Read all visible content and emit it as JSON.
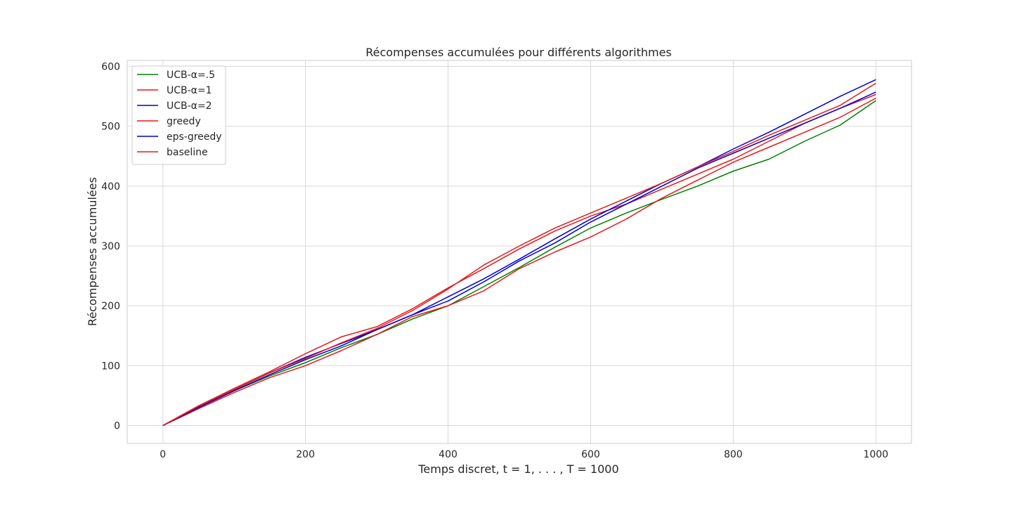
{
  "chart_data": {
    "type": "line",
    "title": "Récompenses accumulées pour différents algorithmes",
    "xlabel": "Temps discret, t = 1, . . . , T = 1000",
    "ylabel": "Récompenses accumulées",
    "xlim": [
      -50,
      1050
    ],
    "ylim": [
      -30,
      610
    ],
    "xticks": [
      0,
      200,
      400,
      600,
      800,
      1000
    ],
    "yticks": [
      0,
      100,
      200,
      300,
      400,
      500,
      600
    ],
    "grid": true,
    "legend_position": "top-left",
    "x": [
      0,
      50,
      100,
      150,
      200,
      250,
      300,
      350,
      400,
      450,
      500,
      550,
      600,
      650,
      700,
      750,
      800,
      850,
      900,
      950,
      1000
    ],
    "series": [
      {
        "name": "UCB-α=.5",
        "color": "#008000",
        "values": [
          0,
          30,
          58,
          83,
          105,
          130,
          152,
          178,
          200,
          232,
          264,
          298,
          330,
          355,
          378,
          400,
          425,
          445,
          475,
          502,
          543
        ]
      },
      {
        "name": "UCB-α=1",
        "color": "#e41a1c",
        "values": [
          0,
          33,
          62,
          90,
          120,
          148,
          165,
          195,
          230,
          262,
          295,
          325,
          350,
          370,
          395,
          420,
          445,
          475,
          505,
          530,
          553
        ]
      },
      {
        "name": "UCB-α=2",
        "color": "#0000cc",
        "values": [
          0,
          31,
          60,
          88,
          114,
          137,
          160,
          185,
          215,
          245,
          278,
          312,
          345,
          375,
          405,
          432,
          462,
          490,
          520,
          550,
          578
        ]
      },
      {
        "name": "greedy",
        "color": "#e41a1c",
        "values": [
          0,
          28,
          55,
          80,
          100,
          125,
          152,
          182,
          200,
          225,
          262,
          290,
          315,
          345,
          380,
          410,
          440,
          465,
          490,
          515,
          547
        ]
      },
      {
        "name": "eps-greedy",
        "color": "#0000cc",
        "values": [
          0,
          30,
          58,
          85,
          110,
          133,
          160,
          185,
          208,
          240,
          275,
          305,
          340,
          370,
          400,
          430,
          455,
          480,
          505,
          530,
          557
        ]
      },
      {
        "name": "baseline",
        "color": "#e41a1c",
        "values": [
          0,
          32,
          60,
          88,
          112,
          138,
          162,
          192,
          228,
          268,
          300,
          330,
          355,
          380,
          405,
          432,
          458,
          485,
          510,
          535,
          572
        ]
      }
    ]
  }
}
